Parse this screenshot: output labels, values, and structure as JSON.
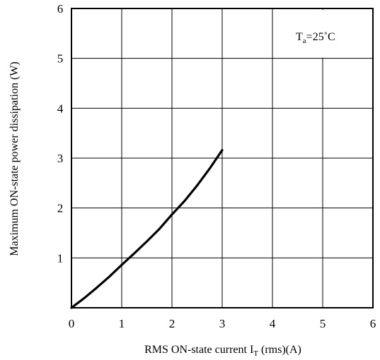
{
  "chart_data": {
    "type": "line",
    "title": "",
    "xlabel_main": "RMS ON-state current I",
    "xlabel_sub": "T",
    "xlabel_tail": " (rms)(A)",
    "ylabel": "Maximum ON-state power dissipation (W)",
    "annotation_main": "T",
    "annotation_sub": "a",
    "annotation_tail": "=25˚C",
    "xlim": [
      0,
      6
    ],
    "ylim": [
      0,
      6
    ],
    "xticks": [
      0,
      1,
      2,
      3,
      4,
      5,
      6
    ],
    "yticks": [
      1,
      2,
      3,
      4,
      5,
      6
    ],
    "xtick_labels": [
      "0",
      "1",
      "2",
      "3",
      "4",
      "5",
      "6"
    ],
    "ytick_labels": [
      "1",
      "2",
      "3",
      "4",
      "5",
      "6"
    ],
    "grid": true,
    "series": [
      {
        "x": [
          0,
          0.25,
          0.5,
          0.75,
          1.0,
          1.25,
          1.5,
          1.75,
          2.0,
          2.25,
          2.5,
          2.75,
          3.0
        ],
        "values": [
          0,
          0.19,
          0.4,
          0.62,
          0.86,
          1.09,
          1.33,
          1.58,
          1.87,
          2.14,
          2.45,
          2.79,
          3.16
        ]
      }
    ]
  }
}
